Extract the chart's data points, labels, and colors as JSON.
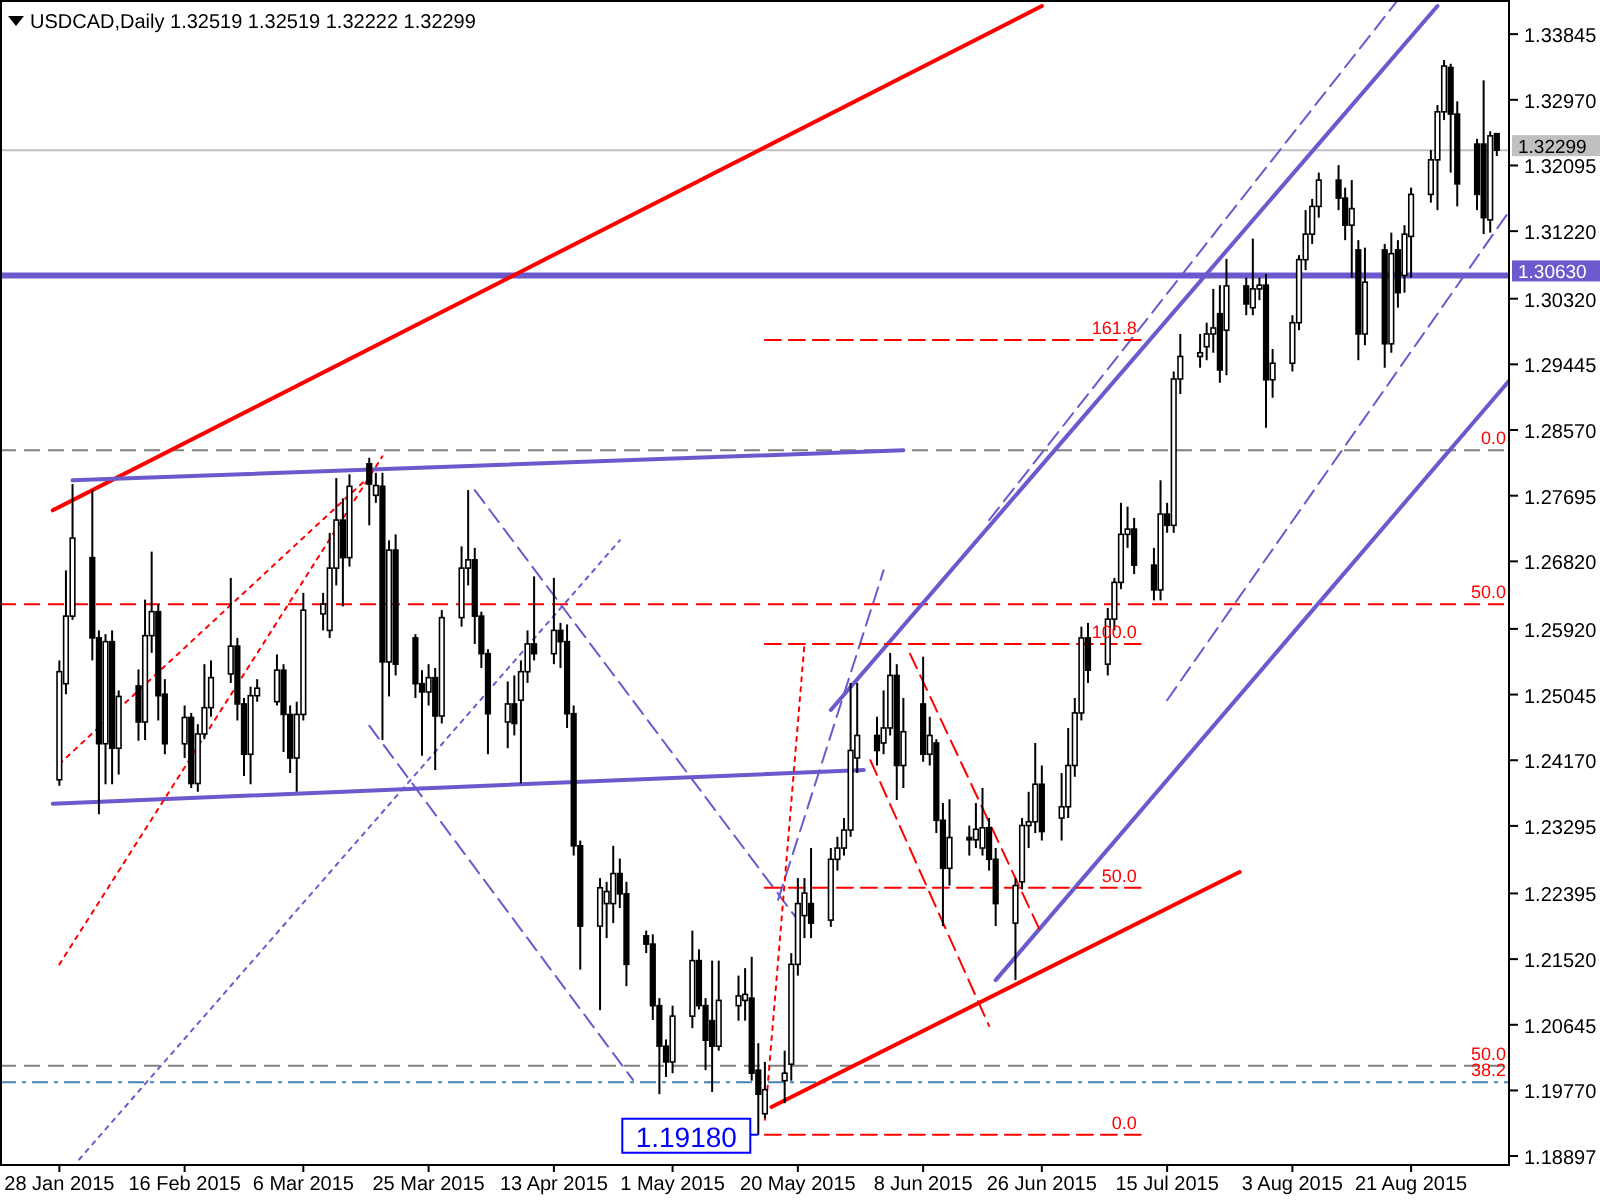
{
  "chart_data": {
    "type": "candlestick",
    "title": "USDCAD,Daily 1.32519 1.32519 1.32222 1.32299",
    "xlim": [
      "2015-01-19",
      "2015-09-05"
    ],
    "ylim": [
      1.1879,
      1.343
    ],
    "xticks": [
      {
        "value": "2015-01-28",
        "label": "28 Jan 2015"
      },
      {
        "value": "2015-02-16",
        "label": "16 Feb 2015"
      },
      {
        "value": "2015-03-06",
        "label": "6 Mar 2015"
      },
      {
        "value": "2015-03-25",
        "label": "25 Mar 2015"
      },
      {
        "value": "2015-04-13",
        "label": "13 Apr 2015"
      },
      {
        "value": "2015-05-01",
        "label": "1 May 2015"
      },
      {
        "value": "2015-05-20",
        "label": "20 May 2015"
      },
      {
        "value": "2015-06-08",
        "label": "8 Jun 2015"
      },
      {
        "value": "2015-06-26",
        "label": "26 Jun 2015"
      },
      {
        "value": "2015-07-15",
        "label": "15 Jul 2015"
      },
      {
        "value": "2015-08-03",
        "label": "3 Aug 2015"
      },
      {
        "value": "2015-08-21",
        "label": "21 Aug 2015"
      }
    ],
    "yticks": [
      {
        "value": 1.33845,
        "label": "1.33845"
      },
      {
        "value": 1.3297,
        "label": "1.32970"
      },
      {
        "value": 1.32095,
        "label": "1.32095"
      },
      {
        "value": 1.3122,
        "label": "1.31220"
      },
      {
        "value": 1.3032,
        "label": "1.30320"
      },
      {
        "value": 1.29445,
        "label": "1.29445"
      },
      {
        "value": 1.2857,
        "label": "1.28570"
      },
      {
        "value": 1.27695,
        "label": "1.27695"
      },
      {
        "value": 1.2682,
        "label": "1.26820"
      },
      {
        "value": 1.2592,
        "label": "1.25920"
      },
      {
        "value": 1.25045,
        "label": "1.25045"
      },
      {
        "value": 1.2417,
        "label": "1.24170"
      },
      {
        "value": 1.23295,
        "label": "1.23295"
      },
      {
        "value": 1.22395,
        "label": "1.22395"
      },
      {
        "value": 1.2152,
        "label": "1.21520"
      },
      {
        "value": 1.20645,
        "label": "1.20645"
      },
      {
        "value": 1.1977,
        "label": "1.19770"
      },
      {
        "value": 1.18897,
        "label": "1.18897"
      }
    ],
    "x": [
      "2015-01-28",
      "2015-01-29",
      "2015-01-30",
      "2015-02-02",
      "2015-02-03",
      "2015-02-04",
      "2015-02-05",
      "2015-02-06",
      "2015-02-09",
      "2015-02-10",
      "2015-02-11",
      "2015-02-12",
      "2015-02-13",
      "2015-02-16",
      "2015-02-17",
      "2015-02-18",
      "2015-02-19",
      "2015-02-20",
      "2015-02-23",
      "2015-02-24",
      "2015-02-25",
      "2015-02-26",
      "2015-02-27",
      "2015-03-02",
      "2015-03-03",
      "2015-03-04",
      "2015-03-05",
      "2015-03-06",
      "2015-03-09",
      "2015-03-10",
      "2015-03-11",
      "2015-03-12",
      "2015-03-13",
      "2015-03-16",
      "2015-03-17",
      "2015-03-18",
      "2015-03-19",
      "2015-03-20",
      "2015-03-23",
      "2015-03-24",
      "2015-03-25",
      "2015-03-26",
      "2015-03-27",
      "2015-03-30",
      "2015-03-31",
      "2015-04-01",
      "2015-04-02",
      "2015-04-03",
      "2015-04-06",
      "2015-04-07",
      "2015-04-08",
      "2015-04-09",
      "2015-04-10",
      "2015-04-13",
      "2015-04-14",
      "2015-04-15",
      "2015-04-16",
      "2015-04-17",
      "2015-04-20",
      "2015-04-21",
      "2015-04-22",
      "2015-04-23",
      "2015-04-24",
      "2015-04-27",
      "2015-04-28",
      "2015-04-29",
      "2015-04-30",
      "2015-05-01",
      "2015-05-04",
      "2015-05-05",
      "2015-05-06",
      "2015-05-07",
      "2015-05-08",
      "2015-05-11",
      "2015-05-12",
      "2015-05-13",
      "2015-05-14",
      "2015-05-15",
      "2015-05-18",
      "2015-05-19",
      "2015-05-20",
      "2015-05-21",
      "2015-05-22",
      "2015-05-25",
      "2015-05-26",
      "2015-05-27",
      "2015-05-28",
      "2015-05-29",
      "2015-06-01",
      "2015-06-02",
      "2015-06-03",
      "2015-06-04",
      "2015-06-05",
      "2015-06-08",
      "2015-06-09",
      "2015-06-10",
      "2015-06-11",
      "2015-06-12",
      "2015-06-15",
      "2015-06-16",
      "2015-06-17",
      "2015-06-18",
      "2015-06-19",
      "2015-06-22",
      "2015-06-23",
      "2015-06-24",
      "2015-06-25",
      "2015-06-26",
      "2015-06-29",
      "2015-06-30",
      "2015-07-01",
      "2015-07-02",
      "2015-07-03",
      "2015-07-06",
      "2015-07-07",
      "2015-07-08",
      "2015-07-09",
      "2015-07-10",
      "2015-07-13",
      "2015-07-14",
      "2015-07-15",
      "2015-07-16",
      "2015-07-17",
      "2015-07-20",
      "2015-07-21",
      "2015-07-22",
      "2015-07-23",
      "2015-07-24",
      "2015-07-27",
      "2015-07-28",
      "2015-07-29",
      "2015-07-30",
      "2015-07-31",
      "2015-08-03",
      "2015-08-04",
      "2015-08-05",
      "2015-08-06",
      "2015-08-07",
      "2015-08-10",
      "2015-08-11",
      "2015-08-12",
      "2015-08-13",
      "2015-08-14",
      "2015-08-17",
      "2015-08-18",
      "2015-08-19",
      "2015-08-20",
      "2015-08-21",
      "2015-08-24",
      "2015-08-25",
      "2015-08-26",
      "2015-08-27",
      "2015-08-28",
      "2015-08-31",
      "2015-09-01",
      "2015-09-02",
      "2015-09-03"
    ],
    "ohlc": [
      [
        1.2391,
        1.255,
        1.2383,
        1.2535
      ],
      [
        1.2519,
        1.267,
        1.2505,
        1.2609
      ],
      [
        1.2609,
        1.2785,
        1.2604,
        1.2713
      ],
      [
        1.2687,
        1.2777,
        1.255,
        1.258
      ],
      [
        1.258,
        1.259,
        1.2345,
        1.2439
      ],
      [
        1.2439,
        1.2585,
        1.2385,
        1.2575
      ],
      [
        1.2575,
        1.259,
        1.2385,
        1.2433
      ],
      [
        1.2433,
        1.251,
        1.2398,
        1.2502
      ],
      [
        1.2516,
        1.2538,
        1.2443,
        1.2468
      ],
      [
        1.2468,
        1.2631,
        1.2444,
        1.2583
      ],
      [
        1.2583,
        1.2695,
        1.256,
        1.2615
      ],
      [
        1.2615,
        1.2625,
        1.247,
        1.2503
      ],
      [
        1.2505,
        1.2525,
        1.2425,
        1.2439
      ],
      [
        1.2439,
        1.249,
        1.242,
        1.2474
      ],
      [
        1.2474,
        1.248,
        1.238,
        1.2386
      ],
      [
        1.2386,
        1.2465,
        1.2375,
        1.2452
      ],
      [
        1.2452,
        1.2545,
        1.2445,
        1.2487
      ],
      [
        1.2487,
        1.255,
        1.2475,
        1.2527
      ],
      [
        1.2532,
        1.266,
        1.252,
        1.2569
      ],
      [
        1.2569,
        1.258,
        1.247,
        1.2492
      ],
      [
        1.2492,
        1.25,
        1.2396,
        1.2425
      ],
      [
        1.2425,
        1.2515,
        1.2385,
        1.2503
      ],
      [
        1.2503,
        1.2525,
        1.2495,
        1.2513
      ],
      [
        1.2495,
        1.2558,
        1.249,
        1.2537
      ],
      [
        1.2537,
        1.2545,
        1.2428,
        1.2478
      ],
      [
        1.2478,
        1.249,
        1.24,
        1.242
      ],
      [
        1.242,
        1.2495,
        1.2375,
        1.2478
      ],
      [
        1.2478,
        1.264,
        1.247,
        1.2617
      ],
      [
        1.2612,
        1.264,
        1.259,
        1.2625
      ],
      [
        1.259,
        1.272,
        1.258,
        1.2673
      ],
      [
        1.2673,
        1.2793,
        1.265,
        1.2737
      ],
      [
        1.2737,
        1.2766,
        1.2622,
        1.2687
      ],
      [
        1.2687,
        1.2798,
        1.2675,
        1.2782
      ],
      [
        1.2812,
        1.282,
        1.273,
        1.2785
      ],
      [
        1.277,
        1.28,
        1.276,
        1.2783
      ],
      [
        1.2782,
        1.28,
        1.2444,
        1.2548
      ],
      [
        1.2548,
        1.271,
        1.2502,
        1.2697
      ],
      [
        1.2697,
        1.2718,
        1.253,
        1.2545
      ],
      [
        1.258,
        1.2585,
        1.25,
        1.2519
      ],
      [
        1.2519,
        1.2537,
        1.2423,
        1.2508
      ],
      [
        1.2508,
        1.2545,
        1.249,
        1.2527
      ],
      [
        1.2527,
        1.254,
        1.2404,
        1.2476
      ],
      [
        1.2476,
        1.2617,
        1.2466,
        1.2607
      ],
      [
        1.2607,
        1.2702,
        1.2595,
        1.2673
      ],
      [
        1.2673,
        1.2777,
        1.265,
        1.2684
      ],
      [
        1.2684,
        1.27,
        1.2572,
        1.2609
      ],
      [
        1.2609,
        1.2615,
        1.254,
        1.2559
      ],
      [
        1.2559,
        1.2565,
        1.2425,
        1.2479
      ],
      [
        1.2468,
        1.2522,
        1.2433,
        1.2492
      ],
      [
        1.2492,
        1.253,
        1.245,
        1.2466
      ],
      [
        1.2497,
        1.255,
        1.2386,
        1.2535
      ],
      [
        1.2535,
        1.259,
        1.252,
        1.2572
      ],
      [
        1.2572,
        1.2662,
        1.255,
        1.2559
      ],
      [
        1.2559,
        1.266,
        1.2545,
        1.259
      ],
      [
        1.259,
        1.26,
        1.254,
        1.2575
      ],
      [
        1.2575,
        1.2598,
        1.246,
        1.2479
      ],
      [
        1.2479,
        1.249,
        1.229,
        1.2303
      ],
      [
        1.2303,
        1.231,
        1.2138,
        1.2196
      ],
      [
        1.2196,
        1.226,
        1.2084,
        1.2247
      ],
      [
        1.2226,
        1.2255,
        1.218,
        1.2242
      ],
      [
        1.2226,
        1.2303,
        1.22,
        1.2266
      ],
      [
        1.2266,
        1.2286,
        1.222,
        1.2239
      ],
      [
        1.2239,
        1.2255,
        1.2116,
        1.2145
      ],
      [
        1.2183,
        1.219,
        1.216,
        1.2172
      ],
      [
        1.2172,
        1.2185,
        1.2071,
        1.209
      ],
      [
        1.209,
        1.21,
        1.1972,
        1.2036
      ],
      [
        1.2036,
        1.2045,
        1.1995,
        1.2015
      ],
      [
        1.2015,
        1.209,
        1.2,
        1.2076
      ],
      [
        1.2076,
        1.219,
        1.206,
        1.215
      ],
      [
        1.215,
        1.2165,
        1.2085,
        1.209
      ],
      [
        1.209,
        1.21,
        1.2004,
        1.2044
      ],
      [
        1.207,
        1.215,
        1.1975,
        1.2036
      ],
      [
        1.2036,
        1.215,
        1.203,
        1.2097
      ],
      [
        1.209,
        1.213,
        1.207,
        1.2103
      ],
      [
        1.2097,
        1.214,
        1.207,
        1.2105
      ],
      [
        1.21,
        1.2155,
        1.199,
        1.2
      ],
      [
        1.2004,
        1.204,
        1.1918,
        1.1972
      ],
      [
        1.1946,
        1.2015,
        1.194,
        1.1978
      ],
      [
        1.199,
        1.203,
        1.196,
        1.2
      ],
      [
        1.2012,
        1.216,
        1.199,
        1.2145
      ],
      [
        1.2145,
        1.226,
        1.213,
        1.2226
      ],
      [
        1.221,
        1.226,
        1.218,
        1.224
      ],
      [
        1.2226,
        1.23,
        1.218,
        1.22
      ],
      [
        1.2204,
        1.23,
        1.2195,
        1.2285
      ],
      [
        1.2285,
        1.2315,
        1.227,
        1.23
      ],
      [
        1.23,
        1.234,
        1.229,
        1.2324
      ],
      [
        1.2324,
        1.252,
        1.2315,
        1.243
      ],
      [
        1.242,
        1.252,
        1.24,
        1.245
      ],
      [
        1.245,
        1.2475,
        1.241,
        1.243
      ],
      [
        1.244,
        1.251,
        1.2425,
        1.246
      ],
      [
        1.246,
        1.256,
        1.245,
        1.253
      ],
      [
        1.253,
        1.2545,
        1.2364,
        1.241
      ],
      [
        1.241,
        1.25,
        1.238,
        1.2455
      ],
      [
        1.2492,
        1.2555,
        1.2415,
        1.2425
      ],
      [
        1.2425,
        1.2475,
        1.241,
        1.245
      ],
      [
        1.244,
        1.2445,
        1.232,
        1.2337
      ],
      [
        1.2337,
        1.236,
        1.2196,
        1.2273
      ],
      [
        1.2273,
        1.2365,
        1.225,
        1.2314
      ],
      [
        1.2314,
        1.233,
        1.229,
        1.2311
      ],
      [
        1.2311,
        1.236,
        1.23,
        1.2325
      ],
      [
        1.23,
        1.238,
        1.229,
        1.2327
      ],
      [
        1.2327,
        1.234,
        1.227,
        1.2285
      ],
      [
        1.2285,
        1.23,
        1.2196,
        1.2226
      ],
      [
        1.22,
        1.226,
        1.2124,
        1.225
      ],
      [
        1.2255,
        1.234,
        1.2245,
        1.233
      ],
      [
        1.233,
        1.2375,
        1.23,
        1.2335
      ],
      [
        1.2335,
        1.244,
        1.232,
        1.2385
      ],
      [
        1.2385,
        1.241,
        1.231,
        1.2322
      ],
      [
        1.234,
        1.24,
        1.231,
        1.2355
      ],
      [
        1.2355,
        1.246,
        1.234,
        1.241
      ],
      [
        1.241,
        1.25,
        1.2395,
        1.248
      ],
      [
        1.248,
        1.2595,
        1.247,
        1.258
      ],
      [
        1.258,
        1.26,
        1.252,
        1.2537
      ],
      [
        1.2545,
        1.262,
        1.253,
        1.2605
      ],
      [
        1.2605,
        1.266,
        1.259,
        1.2654
      ],
      [
        1.2654,
        1.276,
        1.2645,
        1.2718
      ],
      [
        1.2718,
        1.2755,
        1.27,
        1.2725
      ],
      [
        1.2725,
        1.274,
        1.2665,
        1.2677
      ],
      [
        1.2677,
        1.27,
        1.263,
        1.2644
      ],
      [
        1.2644,
        1.279,
        1.263,
        1.2745
      ],
      [
        1.2745,
        1.276,
        1.272,
        1.273
      ],
      [
        1.273,
        1.2935,
        1.272,
        1.2925
      ],
      [
        1.2925,
        1.2985,
        1.2905,
        1.2955
      ],
      [
        1.2955,
        1.2985,
        1.294,
        1.296
      ],
      [
        1.2968,
        1.3,
        1.295,
        1.2985
      ],
      [
        1.2985,
        1.3045,
        1.296,
        1.2993
      ],
      [
        1.3012,
        1.305,
        1.292,
        1.2937
      ],
      [
        1.299,
        1.3085,
        1.293,
        1.3049
      ],
      [
        1.3049,
        1.306,
        1.301,
        1.3025
      ],
      [
        1.302,
        1.3112,
        1.301,
        1.3045
      ],
      [
        1.3045,
        1.306,
        1.303,
        1.305
      ],
      [
        1.305,
        1.3065,
        1.286,
        1.2924
      ],
      [
        1.2924,
        1.2965,
        1.29,
        1.2946
      ],
      [
        1.2946,
        1.301,
        1.2935,
        1.3
      ],
      [
        1.3,
        1.309,
        1.299,
        1.3084
      ],
      [
        1.3084,
        1.315,
        1.307,
        1.3118
      ],
      [
        1.3118,
        1.3165,
        1.3105,
        1.3155
      ],
      [
        1.3155,
        1.32,
        1.314,
        1.319
      ],
      [
        1.319,
        1.321,
        1.315,
        1.3166
      ],
      [
        1.3166,
        1.318,
        1.311,
        1.313
      ],
      [
        1.313,
        1.319,
        1.306,
        1.3152
      ],
      [
        1.3097,
        1.311,
        1.295,
        1.2985
      ],
      [
        1.2985,
        1.31,
        1.297,
        1.3054
      ],
      [
        1.3097,
        1.3105,
        1.294,
        1.2972
      ],
      [
        1.2972,
        1.312,
        1.296,
        1.3092
      ],
      [
        1.3097,
        1.311,
        1.302,
        1.304
      ],
      [
        1.3063,
        1.313,
        1.304,
        1.3118
      ],
      [
        1.3115,
        1.318,
        1.306,
        1.3171
      ],
      [
        1.3171,
        1.323,
        1.316,
        1.3217
      ],
      [
        1.3217,
        1.329,
        1.315,
        1.3281
      ],
      [
        1.3281,
        1.335,
        1.327,
        1.3342
      ],
      [
        1.334,
        1.3345,
        1.32,
        1.3278
      ],
      [
        1.3278,
        1.3295,
        1.3155,
        1.3185
      ],
      [
        1.3238,
        1.3245,
        1.315,
        1.3171
      ],
      [
        1.3238,
        1.3323,
        1.3118,
        1.314
      ],
      [
        1.3137,
        1.3255,
        1.312,
        1.3249
      ],
      [
        1.32519,
        1.32519,
        1.32222,
        1.32299
      ]
    ],
    "series": [
      {
        "type": "line",
        "x": [
          "2015-01-27",
          "2015-06-26"
        ],
        "values": [
          1.275,
          1.3422
        ],
        "color": "#ff0000",
        "line_style": "solid"
      },
      {
        "type": "line",
        "x": [
          "2015-05-16",
          "2015-07-26"
        ],
        "values": [
          1.1955,
          1.2268
        ],
        "color": "#ff0000",
        "line_style": "solid"
      },
      {
        "type": "line",
        "x": [
          "2015-01-30",
          "2015-06-05"
        ],
        "values": [
          1.279,
          1.283
        ],
        "color": "#6a5acd",
        "line_style": "solid"
      },
      {
        "type": "line",
        "x": [
          "2015-01-27",
          "2015-05-30"
        ],
        "values": [
          1.2359,
          1.2404
        ],
        "color": "#6a5acd",
        "line_style": "solid"
      },
      {
        "type": "line",
        "x": [
          "2015-05-25",
          "2015-08-25"
        ],
        "values": [
          1.2484,
          1.3422
        ],
        "color": "#6a5acd",
        "line_style": "solid"
      },
      {
        "type": "line",
        "x": [
          "2015-06-19",
          "2015-09-05"
        ],
        "values": [
          1.2124,
          1.2924
        ],
        "color": "#6a5acd",
        "line_style": "solid"
      },
      {
        "type": "line",
        "x": [
          "2015-06-18",
          "2015-08-19"
        ],
        "values": [
          1.2737,
          1.343
        ],
        "color": "#6a5acd",
        "line_style": "dashed"
      },
      {
        "type": "line",
        "x": [
          "2015-07-15",
          "2015-09-05"
        ],
        "values": [
          1.2497,
          1.315
        ],
        "color": "#6a5acd",
        "line_style": "dashed"
      },
      {
        "type": "line",
        "x": [
          "2015-04-01",
          "2015-05-20"
        ],
        "values": [
          1.2777,
          1.2204
        ],
        "color": "#6a5acd",
        "line_style": "dashed"
      },
      {
        "type": "line",
        "x": [
          "2015-03-16",
          "2015-04-25"
        ],
        "values": [
          1.2463,
          1.1991
        ],
        "color": "#6a5acd",
        "line_style": "dashed"
      },
      {
        "type": "line",
        "x": [
          "2015-05-17",
          "2015-06-02"
        ],
        "values": [
          1.2231,
          1.267
        ],
        "color": "#6a5acd",
        "line_style": "dashed"
      },
      {
        "type": "line",
        "x": [
          "2015-01-31",
          "2015-04-23"
        ],
        "values": [
          1.1885,
          1.271
        ],
        "color": "#6a5acd",
        "line_style": "dotted"
      },
      {
        "type": "line",
        "x": [
          "2015-01-28",
          "2015-03-18"
        ],
        "values": [
          1.2145,
          1.2822
        ],
        "color": "#ff0000",
        "line_style": "dotted"
      },
      {
        "type": "line",
        "x": [
          "2015-01-28",
          "2015-03-16"
        ],
        "values": [
          1.2412,
          1.2795
        ],
        "color": "#ff0000",
        "line_style": "dotted"
      },
      {
        "type": "line",
        "x": [
          "2015-05-15",
          "2015-05-21"
        ],
        "values": [
          1.1938,
          1.2572
        ],
        "color": "#ff0000",
        "line_style": "dotted"
      },
      {
        "type": "line",
        "x": [
          "2015-06-06",
          "2015-06-26"
        ],
        "values": [
          1.2559,
          1.2185
        ],
        "color": "#ff0000",
        "line_style": "dashed"
      },
      {
        "type": "line",
        "x": [
          "2015-05-31",
          "2015-06-18"
        ],
        "values": [
          1.2417,
          1.2063
        ],
        "color": "#ff0000",
        "line_style": "dashed"
      },
      {
        "type": "line",
        "x": [
          "2015-05-15",
          "2015-07-11"
        ],
        "values": [
          1.2977,
          1.2977
        ],
        "color": "#ff0000",
        "line_style": "dashed"
      },
      {
        "type": "line",
        "x": [
          "2015-05-15",
          "2015-07-11"
        ],
        "values": [
          1.2572,
          1.2572
        ],
        "color": "#ff0000",
        "line_style": "dashed"
      },
      {
        "type": "line",
        "x": [
          "2015-05-15",
          "2015-07-11"
        ],
        "values": [
          1.2247,
          1.2247
        ],
        "color": "#ff0000",
        "line_style": "dashed"
      },
      {
        "type": "line",
        "x": [
          "2015-05-15",
          "2015-07-11"
        ],
        "values": [
          1.1918,
          1.1918
        ],
        "color": "#ff0000",
        "line_style": "dashed"
      }
    ],
    "ref_lines": [
      {
        "axis": "y",
        "value": 1.3063,
        "label": "1.30630",
        "color": "#6a5acd",
        "line_style": "solid"
      },
      {
        "axis": "y",
        "value": 1.32299,
        "label": "1.32299",
        "color": "#c0c0c0",
        "line_style": "solid"
      },
      {
        "axis": "y",
        "value": 1.283,
        "color": "#808080",
        "line_style": "dashed"
      },
      {
        "axis": "y",
        "value": 1.2625,
        "color": "#ff0000",
        "line_style": "dashed"
      },
      {
        "axis": "y",
        "value": 1.201,
        "color": "#808080",
        "line_style": "dashed"
      },
      {
        "axis": "y",
        "value": 1.1988,
        "color": "#4682b4",
        "line_style": "dashdot"
      }
    ],
    "annotations": [
      {
        "text": "0.0",
        "x": "2015-09-05",
        "y": 1.283
      },
      {
        "text": "50.0",
        "x": "2015-09-05",
        "y": 1.2625
      },
      {
        "text": "50.0",
        "x": "2015-09-05",
        "y": 1.201
      },
      {
        "text": "38.2",
        "x": "2015-09-05",
        "y": 1.1988
      },
      {
        "text": "161.8",
        "x": "2015-07-11",
        "y": 1.2977
      },
      {
        "text": "100.0",
        "x": "2015-07-11",
        "y": 1.2572
      },
      {
        "text": "50.0",
        "x": "2015-07-11",
        "y": 1.2247
      },
      {
        "text": "0.0",
        "x": "2015-07-11",
        "y": 1.1918
      },
      {
        "text": "1.19180",
        "x": "2015-05-14",
        "y": 1.1918
      }
    ]
  }
}
